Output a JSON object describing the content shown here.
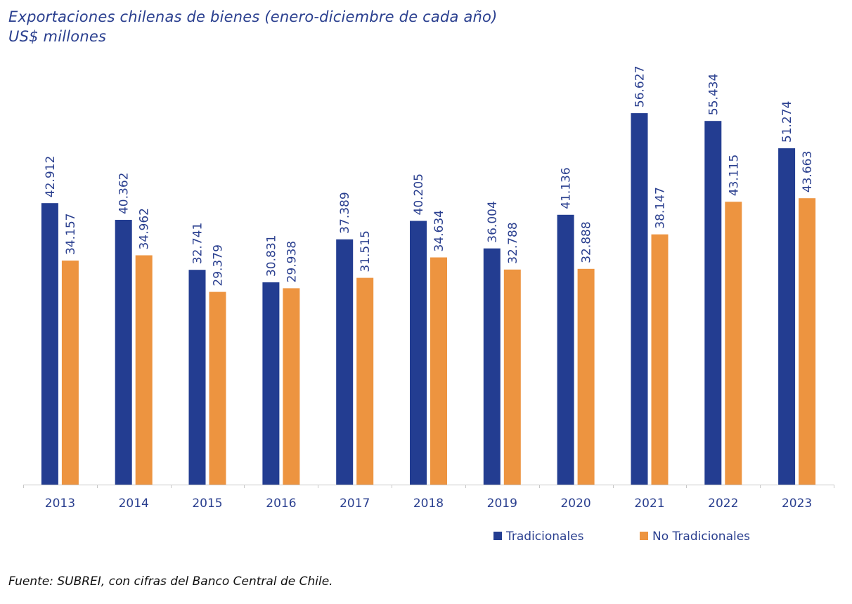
{
  "title": "Exportaciones chilenas de bienes (enero-diciembre de cada año)",
  "subtitle": "US$ millones",
  "source": "Fuente: SUBREI, con cifras del Banco Central de Chile.",
  "colors": {
    "series1": "#233d91",
    "series2": "#ed9440",
    "text": "#2a3f8f",
    "axis": "#c8c8c8"
  },
  "chart_data": {
    "type": "bar",
    "categories": [
      "2013",
      "2014",
      "2015",
      "2016",
      "2017",
      "2018",
      "2019",
      "2020",
      "2021",
      "2022",
      "2023"
    ],
    "series": [
      {
        "name": "Tradicionales",
        "values": [
          42.912,
          40.362,
          32.741,
          30.831,
          37.389,
          40.205,
          36.004,
          41.136,
          56.627,
          55.434,
          51.274
        ],
        "labels": [
          "42.912",
          "40.362",
          "32.741",
          "30.831",
          "37.389",
          "40.205",
          "36.004",
          "41.136",
          "56.627",
          "55.434",
          "51.274"
        ]
      },
      {
        "name": "No Tradicionales",
        "values": [
          34.157,
          34.962,
          29.379,
          29.938,
          31.515,
          34.634,
          32.788,
          32.888,
          38.147,
          43.115,
          43.663
        ],
        "labels": [
          "34.157",
          "34.962",
          "29.379",
          "29.938",
          "31.515",
          "34.634",
          "32.788",
          "32.888",
          "38.147",
          "43.115",
          "43.663"
        ]
      }
    ],
    "title": "Exportaciones chilenas de bienes (enero-diciembre de cada año)",
    "ylabel": "US$ millones",
    "xlabel": "",
    "ylim": [
      0,
      60
    ],
    "grid": false,
    "legend_position": "bottom-right",
    "data_labels": "rotated-vertical"
  }
}
